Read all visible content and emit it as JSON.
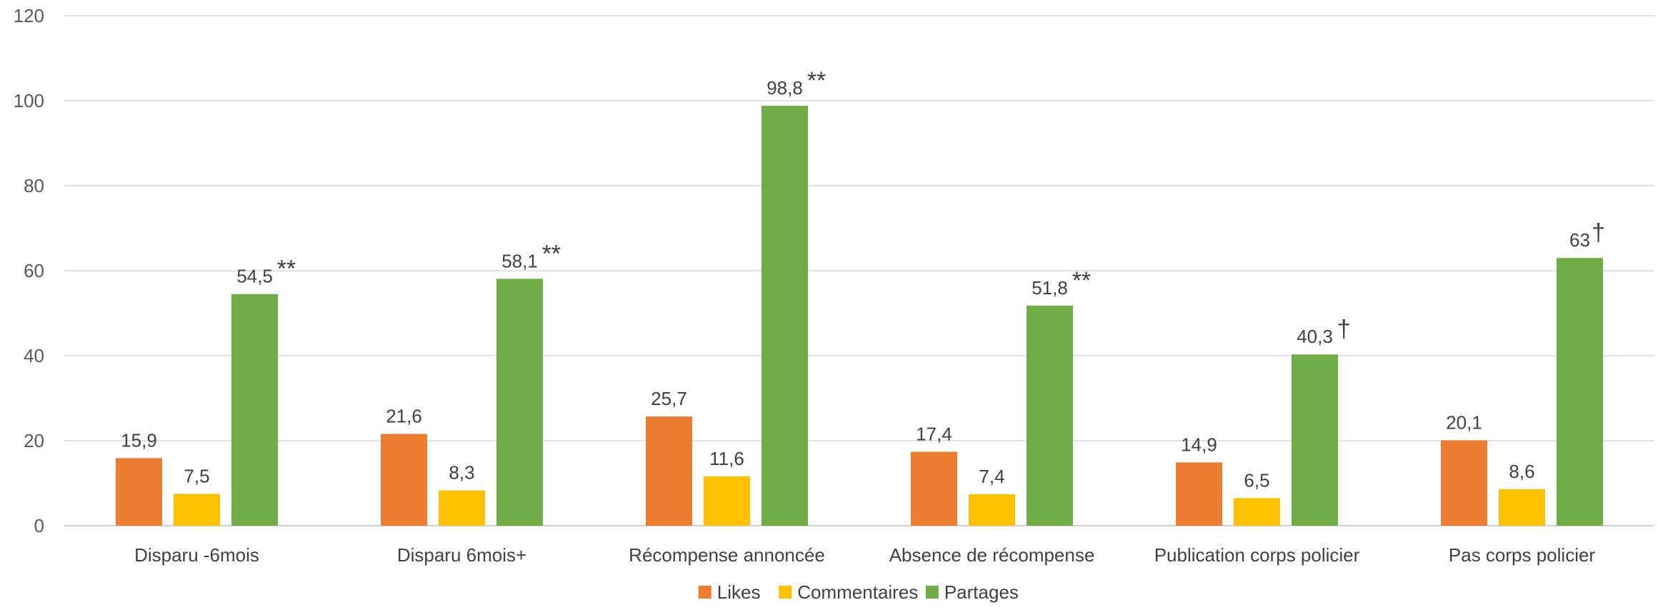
{
  "chart_data": {
    "type": "bar",
    "title": "",
    "xlabel": "",
    "ylabel": "",
    "ylim": [
      0,
      120
    ],
    "yticks": [
      0,
      20,
      40,
      60,
      80,
      100,
      120
    ],
    "grid": true,
    "legend_position": "bottom",
    "categories": [
      "Disparu -6mois",
      "Disparu 6mois+",
      "Récompense annoncée",
      "Absence de récompense",
      "Publication corps policier",
      "Pas corps policier"
    ],
    "series": [
      {
        "name": "Likes",
        "color": "#ED7D31",
        "values": [
          15.9,
          21.6,
          25.7,
          17.4,
          14.9,
          20.1
        ],
        "labels": [
          "15,9",
          "21,6",
          "25,7",
          "17,4",
          "14,9",
          "20,1"
        ],
        "marks": [
          "",
          "",
          "",
          "",
          "",
          ""
        ]
      },
      {
        "name": "Commentaires",
        "color": "#FFC000",
        "values": [
          7.5,
          8.3,
          11.6,
          7.4,
          6.5,
          8.6
        ],
        "labels": [
          "7,5",
          "8,3",
          "11,6",
          "7,4",
          "6,5",
          "8,6"
        ],
        "marks": [
          "",
          "",
          "",
          "",
          "",
          ""
        ]
      },
      {
        "name": "Partages",
        "color": "#70AD47",
        "values": [
          54.5,
          58.1,
          98.8,
          51.8,
          40.3,
          63
        ],
        "labels": [
          "54,5",
          "58,1",
          "98,8",
          "51,8",
          "40,3",
          "63"
        ],
        "marks": [
          "**",
          "**",
          "**",
          "**",
          "†",
          "†"
        ]
      }
    ]
  }
}
